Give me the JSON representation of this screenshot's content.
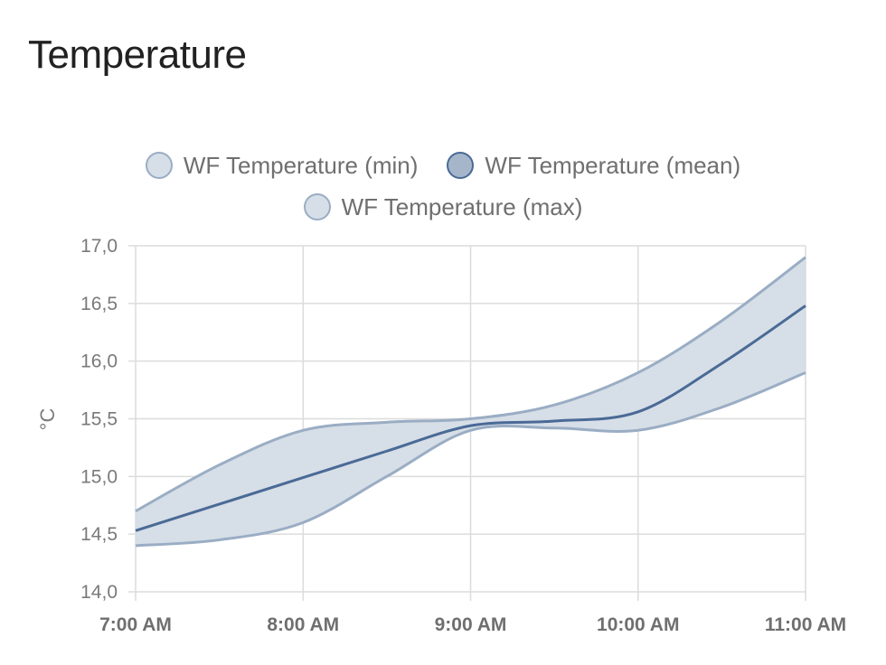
{
  "card": {
    "title": "Temperature"
  },
  "chart_data": {
    "type": "line",
    "title": "",
    "xlabel": "",
    "ylabel": "°C",
    "ylim": [
      14.0,
      17.0
    ],
    "xlim": [
      7.0,
      11.0
    ],
    "y_ticks": [
      "14,0",
      "14,5",
      "15,0",
      "15,5",
      "16,0",
      "16,5",
      "17,0"
    ],
    "y_tick_values": [
      14.0,
      14.5,
      15.0,
      15.5,
      16.0,
      16.5,
      17.0
    ],
    "x_ticks": [
      "7:00 AM",
      "8:00 AM",
      "9:00 AM",
      "10:00 AM",
      "11:00 AM"
    ],
    "x_tick_values": [
      7,
      8,
      9,
      10,
      11
    ],
    "grid": true,
    "legend_position": "top",
    "colors": {
      "band_fill": "#d4dce6",
      "band_line": "#9aadc4",
      "mean_line": "#4a6a96",
      "mean_swatch": "#a6b6ca",
      "grid": "#dcdcdc"
    },
    "series": [
      {
        "name": "WF Temperature (min)",
        "swatch": "#d6dee8",
        "stroke": "#9aadc4",
        "x": [
          7.0,
          7.5,
          8.0,
          8.5,
          9.0,
          9.5,
          10.0,
          10.5,
          11.0
        ],
        "y": [
          14.4,
          14.45,
          14.6,
          15.0,
          15.4,
          15.42,
          15.4,
          15.6,
          15.9
        ]
      },
      {
        "name": "WF Temperature (mean)",
        "swatch": "#a6b6ca",
        "stroke": "#4a6a96",
        "x": [
          7.0,
          7.5,
          8.0,
          8.5,
          9.0,
          9.5,
          10.0,
          10.5,
          11.0
        ],
        "y": [
          14.53,
          14.76,
          14.99,
          15.22,
          15.44,
          15.48,
          15.56,
          15.98,
          16.48
        ]
      },
      {
        "name": "WF Temperature (max)",
        "swatch": "#d6dee8",
        "stroke": "#9aadc4",
        "x": [
          7.0,
          7.5,
          8.0,
          8.5,
          9.0,
          9.5,
          10.0,
          10.5,
          11.0
        ],
        "y": [
          14.7,
          15.1,
          15.4,
          15.47,
          15.5,
          15.62,
          15.9,
          16.35,
          16.9
        ]
      }
    ]
  }
}
